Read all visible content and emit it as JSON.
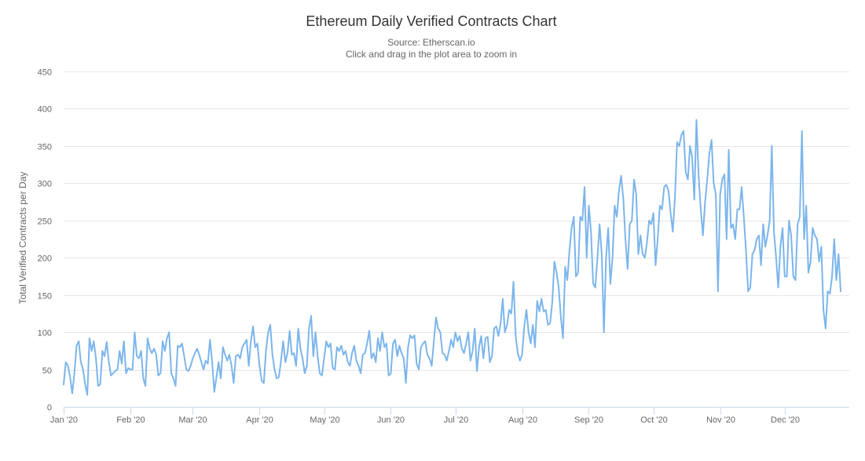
{
  "chart_data": {
    "type": "line",
    "title": "Ethereum Daily Verified Contracts Chart",
    "subtitle_lines": [
      "Source: Etherscan.io",
      "Click and drag in the plot area to zoom in"
    ],
    "ylabel": "Total Verified Contracts per Day",
    "xlabel": "",
    "ylim": [
      0,
      450
    ],
    "yticks": [
      0,
      50,
      100,
      150,
      200,
      250,
      300,
      350,
      400,
      450
    ],
    "xlim_days": [
      0,
      365
    ],
    "xtick_labels": [
      "Jan '20",
      "Feb '20",
      "Mar '20",
      "Apr '20",
      "May '20",
      "Jun '20",
      "Jul '20",
      "Aug '20",
      "Sep '20",
      "Oct '20",
      "Nov '20",
      "Dec '20"
    ],
    "xtick_days": [
      0,
      31,
      60,
      91,
      121,
      152,
      182,
      213,
      244,
      274,
      305,
      335
    ],
    "grid": true,
    "legend": "none",
    "series": [
      {
        "name": "Verified Contracts",
        "color": "#7cb5ec",
        "x_start_day": 0,
        "values": [
          30,
          60,
          55,
          40,
          18,
          45,
          82,
          88,
          60,
          50,
          30,
          16,
          92,
          75,
          88,
          65,
          28,
          30,
          75,
          68,
          87,
          60,
          42,
          45,
          48,
          50,
          75,
          58,
          88,
          45,
          52,
          50,
          50,
          100,
          68,
          65,
          75,
          38,
          28,
          92,
          78,
          72,
          78,
          70,
          42,
          45,
          88,
          75,
          92,
          100,
          45,
          38,
          28,
          82,
          80,
          85,
          68,
          50,
          48,
          55,
          65,
          72,
          78,
          70,
          60,
          50,
          62,
          58,
          90,
          60,
          20,
          40,
          60,
          38,
          80,
          70,
          62,
          70,
          55,
          32,
          68,
          70,
          65,
          80,
          85,
          90,
          55,
          88,
          108,
          80,
          85,
          55,
          35,
          32,
          75,
          100,
          110,
          70,
          50,
          38,
          40,
          62,
          88,
          60,
          72,
          102,
          70,
          72,
          55,
          105,
          78,
          65,
          45,
          55,
          105,
          122,
          68,
          100,
          68,
          45,
          42,
          65,
          88,
          80,
          85,
          52,
          50,
          80,
          75,
          82,
          70,
          75,
          60,
          55,
          72,
          82,
          62,
          55,
          45,
          70,
          72,
          85,
          102,
          65,
          72,
          60,
          92,
          75,
          100,
          80,
          85,
          42,
          45,
          85,
          90,
          68,
          82,
          72,
          65,
          32,
          80,
          96,
          92,
          96,
          58,
          50,
          80,
          85,
          88,
          70,
          65,
          55,
          88,
          120,
          105,
          100,
          72,
          70,
          62,
          75,
          90,
          80,
          100,
          88,
          95,
          78,
          72,
          85,
          100,
          62,
          75,
          105,
          48,
          80,
          95,
          65,
          92,
          94,
          60,
          68,
          105,
          108,
          95,
          112,
          145,
          100,
          110,
          130,
          125,
          168,
          95,
          72,
          62,
          70,
          108,
          130,
          100,
          85,
          110,
          80,
          142,
          128,
          145,
          128,
          130,
          110,
          112,
          140,
          195,
          180,
          160,
          120,
          92,
          188,
          170,
          210,
          240,
          255,
          175,
          180,
          255,
          250,
          295,
          200,
          270,
          235,
          165,
          160,
          200,
          245,
          205,
          100,
          200,
          240,
          165,
          200,
          270,
          255,
          290,
          310,
          280,
          225,
          185,
          245,
          250,
          305,
          285,
          205,
          230,
          205,
          200,
          220,
          250,
          245,
          260,
          190,
          225,
          270,
          265,
          295,
          298,
          290,
          260,
          235,
          280,
          355,
          350,
          365,
          370,
          315,
          305,
          350,
          335,
          278,
          385,
          310,
          265,
          230,
          275,
          305,
          340,
          358,
          300,
          285,
          155,
          285,
          305,
          312,
          225,
          345,
          240,
          245,
          225,
          265,
          265,
          295,
          255,
          210,
          155,
          160,
          205,
          210,
          225,
          230,
          190,
          245,
          215,
          230,
          250,
          350,
          235,
          200,
          160,
          215,
          240,
          175,
          175,
          250,
          230,
          175,
          170,
          245,
          255,
          370,
          225,
          270,
          180,
          195,
          240,
          230,
          225,
          195,
          215,
          130,
          105,
          155,
          152,
          175,
          225,
          170,
          205,
          155
        ]
      }
    ]
  }
}
